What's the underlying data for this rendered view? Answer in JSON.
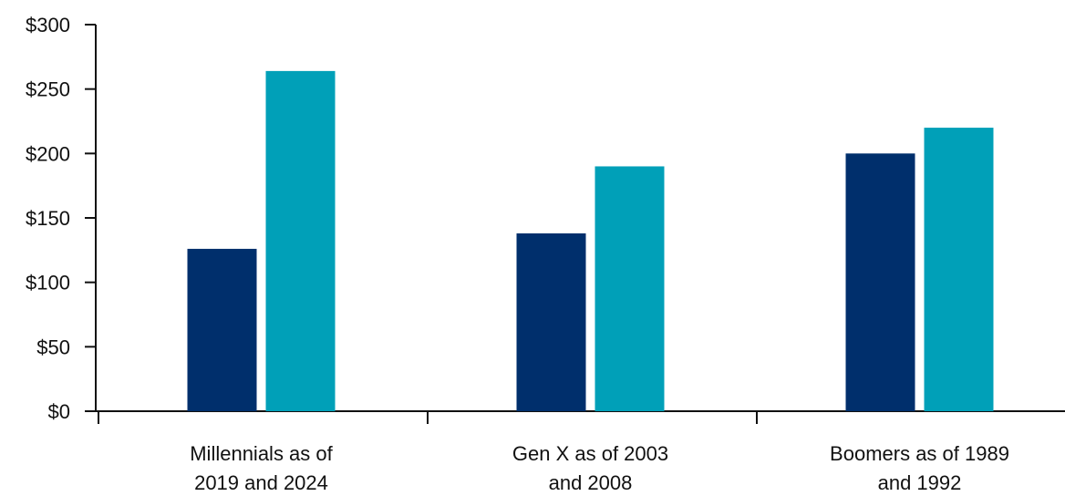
{
  "chart_data": {
    "type": "bar",
    "categories": [
      [
        "Millennials as of",
        "2019 and 2024"
      ],
      [
        "Gen X as of 2003",
        "and 2008"
      ],
      [
        "Boomers as of 1989",
        "and 1992"
      ]
    ],
    "series": [
      {
        "values": [
          126,
          138,
          200
        ],
        "color": "#002f6c"
      },
      {
        "values": [
          264,
          190,
          220
        ],
        "color": "#00a0b8"
      }
    ],
    "y_ticks": [
      "$0",
      "$50",
      "$100",
      "$150",
      "$200",
      "$250",
      "$300"
    ],
    "ylim": [
      0,
      300
    ],
    "grid": false,
    "legend": "none",
    "axis_color": "#111111"
  }
}
